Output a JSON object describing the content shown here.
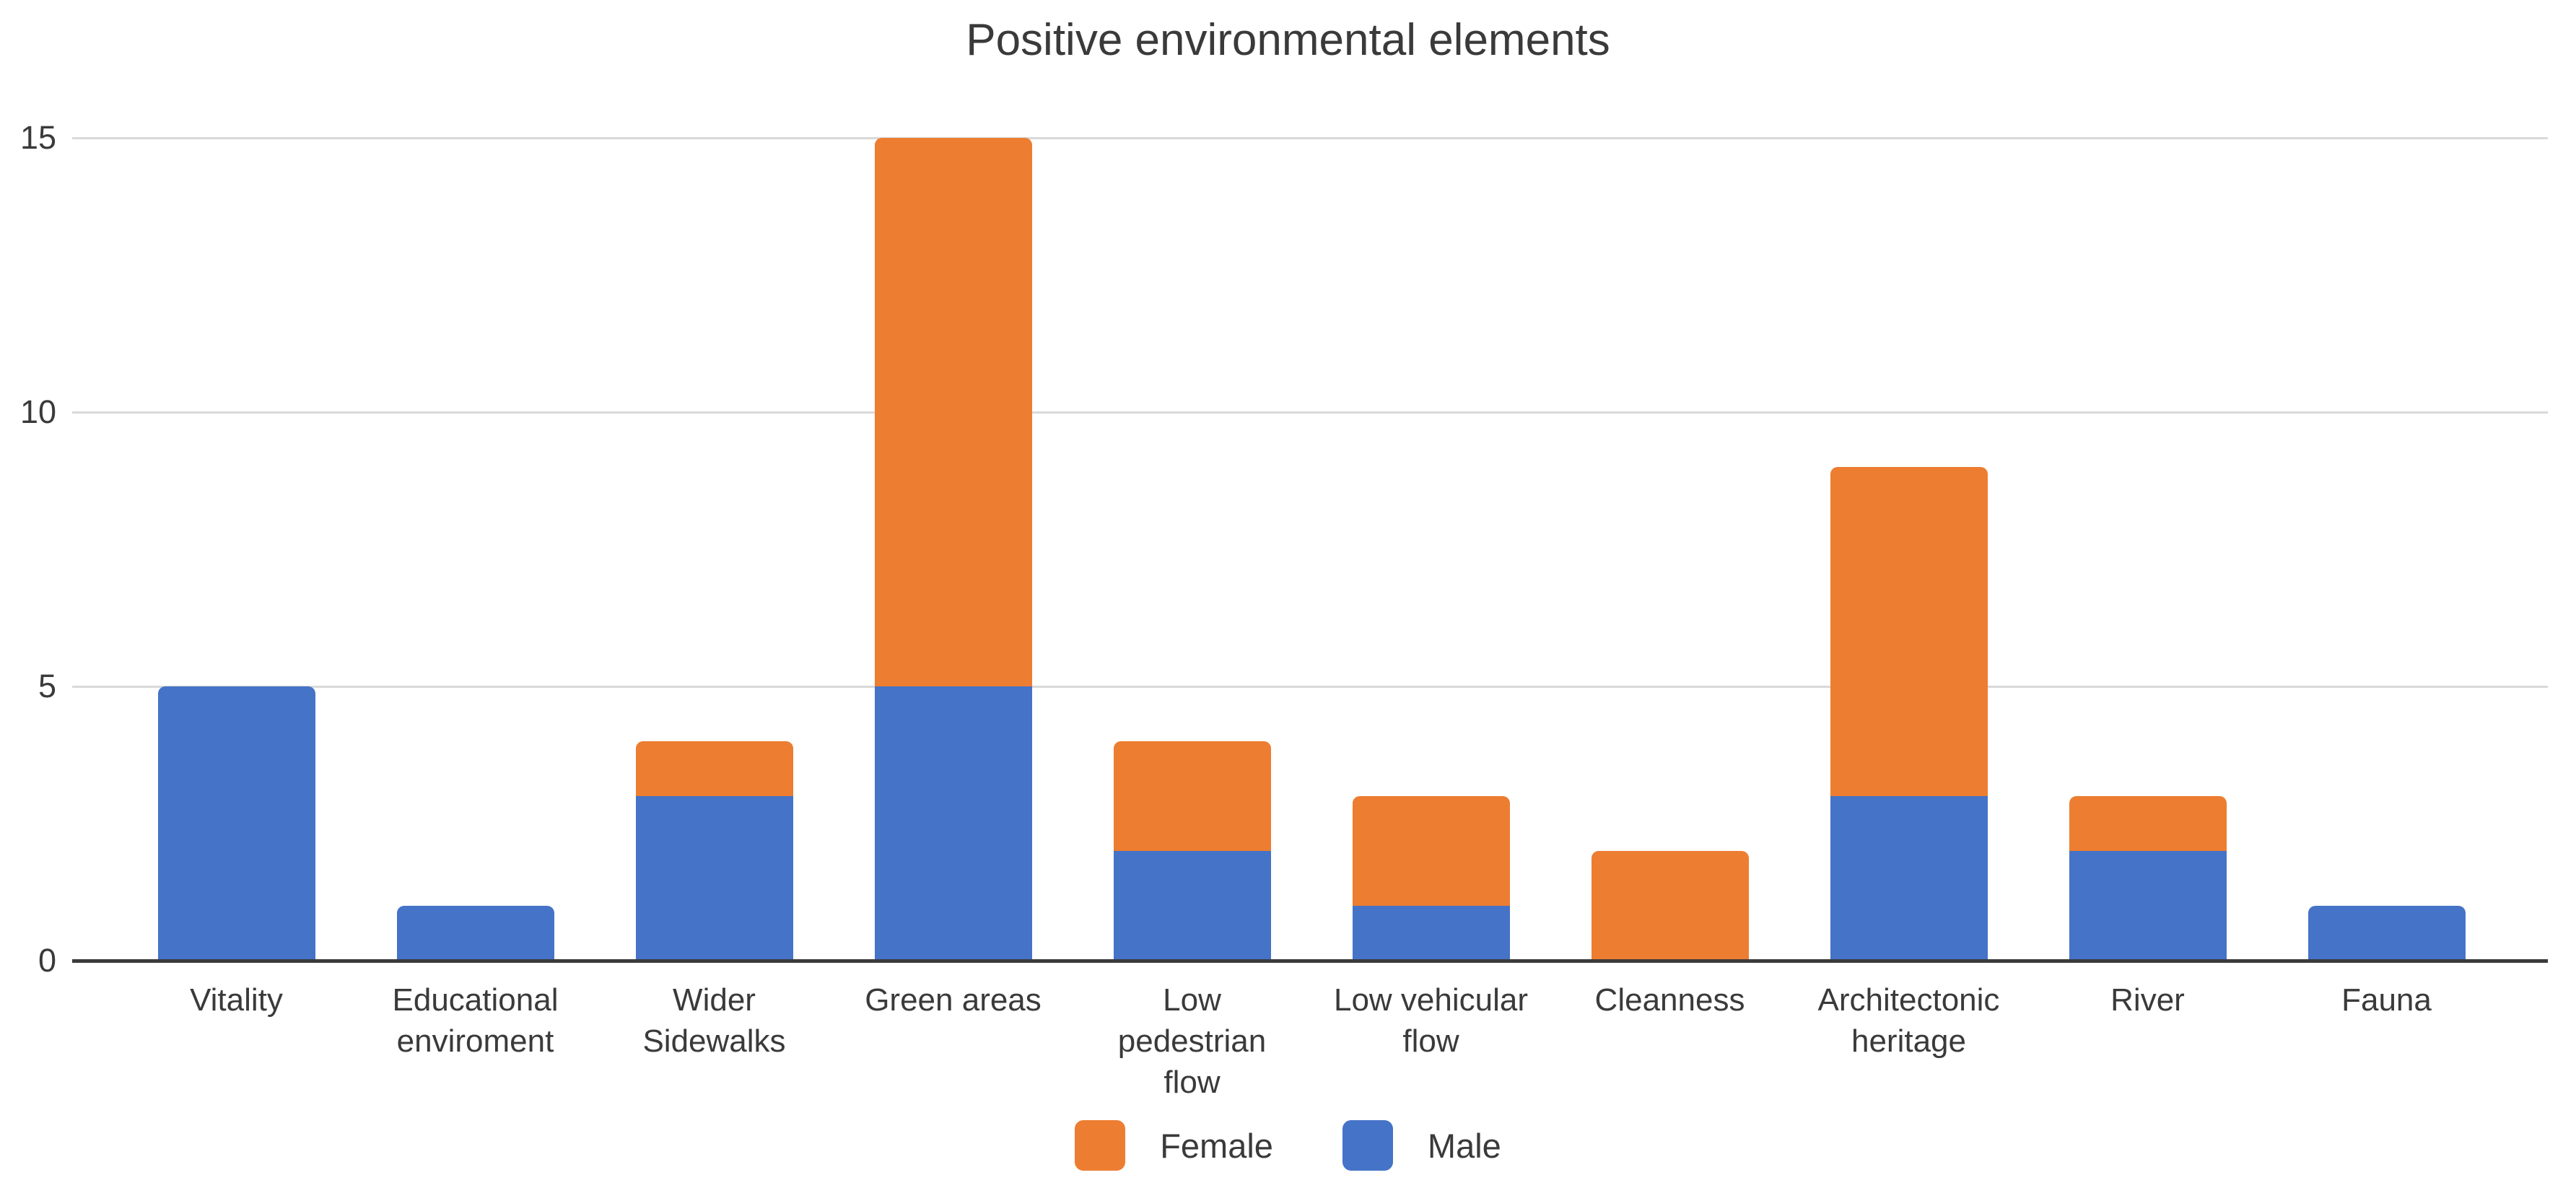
{
  "title": "Positive environmental elements",
  "chart_data": {
    "type": "bar",
    "stacked": true,
    "title": "Positive environmental elements",
    "categories": [
      "Vitality",
      "Educational enviroment",
      "Wider Sidewalks",
      "Green areas",
      "Low pedestrian flow",
      "Low vehicular flow",
      "Cleanness",
      "Architectonic heritage",
      "River",
      "Fauna"
    ],
    "tick_labels": [
      "Vitality",
      "Educational\nenviroment",
      "Wider\nSidewalks",
      "Green areas",
      "Low\npedestrian\nflow",
      "Low vehicular\nflow",
      "Cleanness",
      "Architectonic\nheritage",
      "River",
      "Fauna"
    ],
    "series": [
      {
        "name": "Female",
        "color": "#ED7D31",
        "values": [
          0,
          0,
          1,
          10,
          2,
          2,
          2,
          6,
          1,
          0
        ]
      },
      {
        "name": "Male",
        "color": "#4573C7",
        "values": [
          5,
          1,
          3,
          5,
          2,
          1,
          0,
          3,
          2,
          1
        ]
      }
    ],
    "stack_order_bottom_to_top": [
      "Male",
      "Female"
    ],
    "legend_order": [
      "Female",
      "Male"
    ],
    "xlabel": "",
    "ylabel": "",
    "y_ticks": [
      0,
      5,
      10,
      15
    ],
    "ylim": [
      0,
      15
    ],
    "grid": "horizontal",
    "legend_position": "bottom",
    "colors": {
      "female": "#ED7D31",
      "male": "#4573C7",
      "gridline": "#D9D9D9",
      "axis_line": "#3B3B3B",
      "text": "#3A3A3A",
      "background": "#FFFFFF"
    }
  }
}
